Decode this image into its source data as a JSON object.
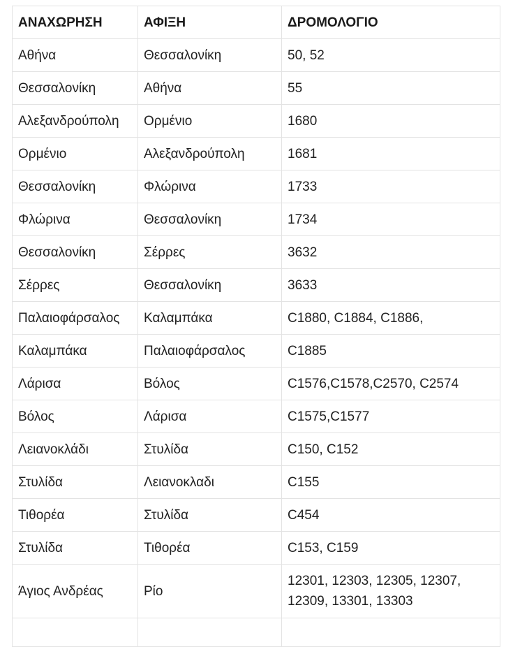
{
  "headers": [
    "ΑΝΑΧΩΡΗΣΗ",
    "ΑΦΙΞΗ",
    "ΔΡΟΜΟΛΟΓΙΟ"
  ],
  "rows": [
    [
      "Αθήνα",
      "Θεσσαλονίκη",
      "50, 52"
    ],
    [
      "Θεσσαλονίκη",
      "Αθήνα",
      "55"
    ],
    [
      "Αλεξανδρούπολη",
      "Ορμένιο",
      "1680"
    ],
    [
      "Ορμένιο",
      "Αλεξανδρούπολη",
      "1681"
    ],
    [
      "Θεσσαλονίκη",
      "Φλώρινα",
      "1733"
    ],
    [
      "Φλώρινα",
      "Θεσσαλονίκη",
      "1734"
    ],
    [
      "Θεσσαλονίκη",
      "Σέρρες",
      "3632"
    ],
    [
      "Σέρρες",
      "Θεσσαλονίκη",
      "3633"
    ],
    [
      "Παλαιοφάρσαλος",
      "Καλαμπάκα",
      "C1880, C1884, C1886,"
    ],
    [
      "Καλαμπάκα",
      "Παλαιοφάρσαλος",
      "C1885"
    ],
    [
      "Λάρισα",
      "Βόλος",
      "C1576,C1578,C2570, C2574"
    ],
    [
      "Βόλος",
      "Λάρισα",
      "C1575,C1577"
    ],
    [
      "Λειανοκλάδι",
      "Στυλίδα",
      "C150, C152"
    ],
    [
      "Στυλίδα",
      "Λειανοκλαδι",
      "C155"
    ],
    [
      "Τιθορέα",
      "Στυλίδα",
      "C454"
    ],
    [
      "Στυλίδα",
      "Τιθορέα",
      "C153, C159"
    ],
    [
      "Άγιος Ανδρέας",
      "Ρίο",
      "12301, 12303, 12305, 12307, 12309, 13301, 13303"
    ]
  ]
}
